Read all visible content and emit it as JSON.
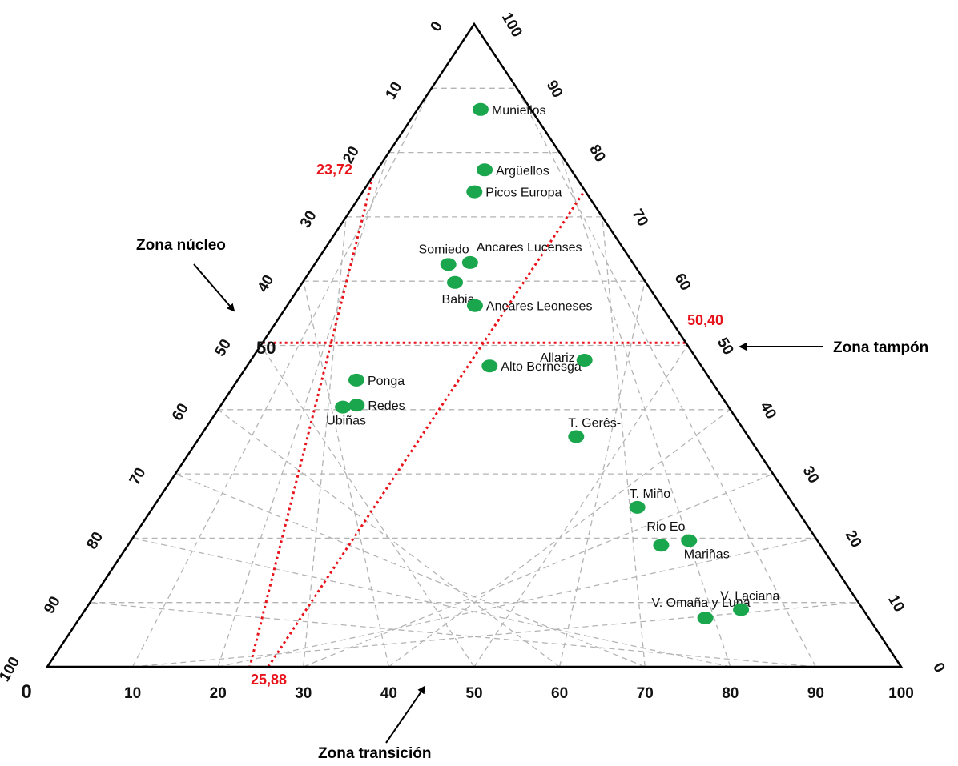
{
  "chart_data": {
    "type": "scatter",
    "subtype": "ternary",
    "axes": {
      "bottom": {
        "ticks": [
          0,
          10,
          20,
          30,
          40,
          50,
          60,
          70,
          80,
          90,
          100
        ],
        "tick_labels": [
          "0",
          "10",
          "20",
          "30",
          "40",
          "50",
          "60",
          "70",
          "80",
          "90",
          "100"
        ]
      },
      "left": {
        "ticks": [
          0,
          10,
          20,
          30,
          40,
          50,
          60,
          70,
          80,
          90,
          100
        ],
        "tick_labels": [
          "0",
          "10",
          "20",
          "30",
          "40",
          "50",
          "60",
          "70",
          "80",
          "90",
          "100"
        ],
        "note": "0 at apex, 100 at bottom-left corner"
      },
      "right": {
        "ticks": [
          0,
          10,
          20,
          30,
          40,
          50,
          60,
          70,
          80,
          90,
          100
        ],
        "tick_labels": [
          "0",
          "10",
          "20",
          "30",
          "40",
          "50",
          "60",
          "70",
          "80",
          "90",
          "100"
        ],
        "note": "100 at apex, 0 at bottom-right corner"
      }
    },
    "grid": true,
    "zone_labels": {
      "nucleo": "Zona núcleo",
      "tampon": "Zona tampón",
      "transicion": "Zona transición"
    },
    "reference_values": {
      "left": "23,72",
      "right": "50,40",
      "bottom": "25,88",
      "center": "50"
    },
    "reference_lines": {
      "left": 23.72,
      "right": 50.4,
      "bottom": 25.88
    },
    "points_note": "u = position along the bottom scale (0-100), h = height on the right scale (0 = base, 100 = apex)",
    "points": [
      {
        "name": "Muniellos",
        "u": 55.6,
        "h": 86.7,
        "label_side": "right"
      },
      {
        "name": "Argüellos",
        "u": 55.4,
        "h": 77.3,
        "label_side": "right"
      },
      {
        "name": "Picos Europa",
        "u": 50.1,
        "h": 73.9,
        "label_side": "right"
      },
      {
        "name": "Somiedo",
        "u": 41.9,
        "h": 62.6,
        "label_side": "above-left"
      },
      {
        "name": "Ancares Lucenses",
        "u": 48.7,
        "h": 62.9,
        "label_side": "above-right"
      },
      {
        "name": "Babia",
        "u": 44.4,
        "h": 59.8,
        "label_side": "below"
      },
      {
        "name": "Ancares Leoneses",
        "u": 50.2,
        "h": 56.2,
        "label_side": "right"
      },
      {
        "name": "Alto Bernesga",
        "u": 53.4,
        "h": 46.8,
        "label_side": "right"
      },
      {
        "name": "Allariz",
        "u": 74.7,
        "h": 47.7,
        "label_side": "left"
      },
      {
        "name": "Ponga",
        "u": 25.1,
        "h": 44.6,
        "label_side": "right"
      },
      {
        "name": "Redes",
        "u": 26.8,
        "h": 40.7,
        "label_side": "right"
      },
      {
        "name": "Ubiñas",
        "u": 24.2,
        "h": 40.4,
        "label_side": "below-left"
      },
      {
        "name": "T. Gerês-",
        "u": 68.6,
        "h": 35.8,
        "label_side": "above"
      },
      {
        "name": "T. Miño",
        "u": 75.4,
        "h": 24.8,
        "label_side": "above"
      },
      {
        "name": "Rio Eo",
        "u": 77.0,
        "h": 18.9,
        "label_side": "above-left"
      },
      {
        "name": "Mariñas",
        "u": 81.3,
        "h": 19.6,
        "label_side": "below-right"
      },
      {
        "name": "V. Omaña y Luna",
        "u": 79.3,
        "h": 7.6,
        "label_side": "above-left"
      },
      {
        "name": "V. Laciana",
        "u": 84.3,
        "h": 8.9,
        "label_side": "above"
      }
    ],
    "colors": {
      "point": "#1aa64c",
      "reference": "#e8141c",
      "grid": "#b4b4b4",
      "frame": "#000000"
    }
  }
}
